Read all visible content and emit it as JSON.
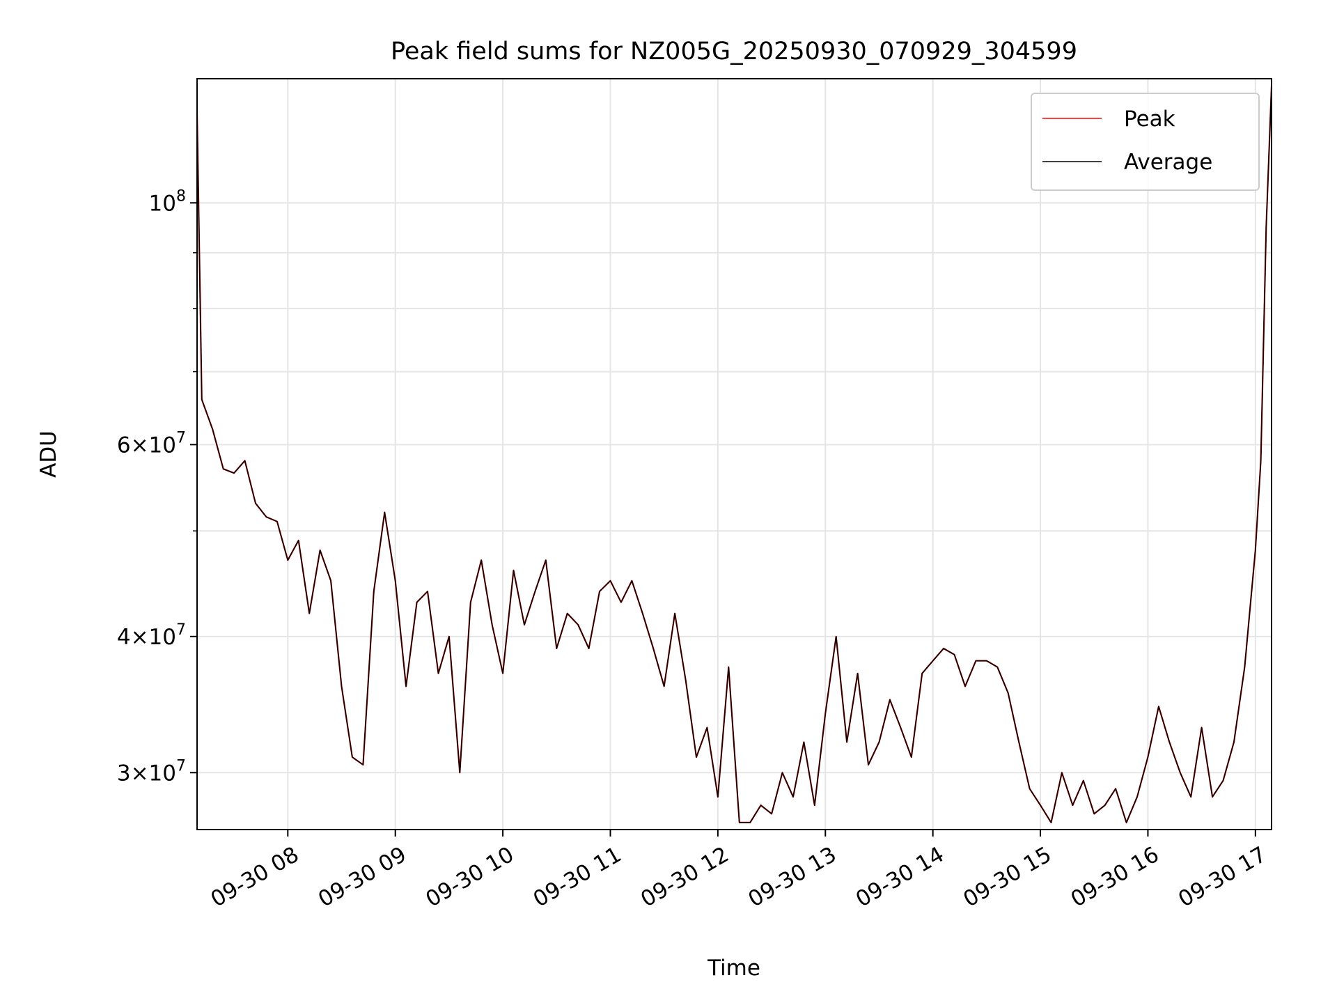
{
  "chart_data": {
    "type": "line",
    "title": "Peak field sums for NZ005G_20250930_070929_304599",
    "xlabel": "Time",
    "ylabel": "ADU",
    "yscale": "log",
    "grid": true,
    "legend_position": "top-right",
    "x_tick_labels": [
      "09-30 08",
      "09-30 09",
      "09-30 10",
      "09-30 11",
      "09-30 12",
      "09-30 13",
      "09-30 14",
      "09-30 15",
      "09-30 16",
      "09-30 17"
    ],
    "x_tick_hours": [
      8,
      9,
      10,
      11,
      12,
      13,
      14,
      15,
      16,
      17
    ],
    "xlim_hours": [
      7.156,
      17.15
    ],
    "ylim": [
      26600000,
      130000000
    ],
    "y_major_ticks": [
      {
        "value": 30000000,
        "mantissa": "3",
        "exp": "7"
      },
      {
        "value": 40000000,
        "mantissa": "4",
        "exp": "7"
      },
      {
        "value": 60000000,
        "mantissa": "6",
        "exp": "7"
      },
      {
        "value": 100000000,
        "mantissa": "",
        "exp": "8"
      }
    ],
    "y_minor_grid": [
      50000000,
      70000000,
      80000000,
      90000000
    ],
    "x_hours": [
      7.156,
      7.2,
      7.3,
      7.4,
      7.5,
      7.6,
      7.7,
      7.8,
      7.9,
      8.0,
      8.1,
      8.2,
      8.3,
      8.4,
      8.5,
      8.6,
      8.7,
      8.8,
      8.9,
      9.0,
      9.1,
      9.2,
      9.3,
      9.4,
      9.5,
      9.6,
      9.7,
      9.8,
      9.9,
      10.0,
      10.1,
      10.2,
      10.3,
      10.4,
      10.5,
      10.6,
      10.7,
      10.8,
      10.9,
      11.0,
      11.1,
      11.2,
      11.3,
      11.4,
      11.5,
      11.6,
      11.7,
      11.8,
      11.9,
      12.0,
      12.1,
      12.2,
      12.3,
      12.4,
      12.5,
      12.6,
      12.7,
      12.8,
      12.9,
      13.0,
      13.1,
      13.2,
      13.3,
      13.4,
      13.5,
      13.6,
      13.7,
      13.8,
      13.9,
      14.0,
      14.1,
      14.2,
      14.3,
      14.4,
      14.5,
      14.6,
      14.7,
      14.8,
      14.9,
      15.0,
      15.1,
      15.2,
      15.3,
      15.4,
      15.5,
      15.6,
      15.7,
      15.8,
      15.9,
      16.0,
      16.1,
      16.2,
      16.3,
      16.4,
      16.5,
      16.6,
      16.7,
      16.8,
      16.9,
      17.0,
      17.05,
      17.1,
      17.15
    ],
    "series": [
      {
        "name": "Peak",
        "color": "#ff0000",
        "values": [
          121000000,
          66000000,
          62000000,
          57000000,
          56500000,
          58000000,
          53000000,
          51500000,
          51000000,
          47000000,
          49000000,
          42000000,
          48000000,
          45000000,
          36000000,
          31000000,
          30500000,
          44000000,
          52000000,
          45000000,
          36000000,
          43000000,
          44000000,
          37000000,
          40000000,
          30000000,
          43000000,
          47000000,
          41000000,
          37000000,
          46000000,
          41000000,
          44000000,
          47000000,
          39000000,
          42000000,
          41000000,
          39000000,
          44000000,
          45000000,
          43000000,
          45000000,
          42000000,
          39000000,
          36000000,
          42000000,
          36500000,
          31000000,
          33000000,
          28500000,
          37500000,
          27000000,
          27000000,
          28000000,
          27500000,
          30000000,
          28500000,
          32000000,
          28000000,
          34000000,
          40000000,
          32000000,
          37000000,
          30500000,
          32000000,
          35000000,
          33000000,
          31000000,
          37000000,
          38000000,
          39000000,
          38500000,
          36000000,
          38000000,
          38000000,
          37500000,
          35500000,
          32000000,
          29000000,
          28000000,
          27000000,
          30000000,
          28000000,
          29500000,
          27500000,
          28000000,
          29000000,
          27000000,
          28500000,
          31000000,
          34500000,
          32000000,
          30000000,
          28500000,
          33000000,
          28500000,
          29500000,
          32000000,
          37500000,
          48000000,
          58000000,
          95000000,
          128000000
        ]
      },
      {
        "name": "Average",
        "color": "#000000",
        "values": [
          121000000,
          66000000,
          62000000,
          57000000,
          56500000,
          58000000,
          53000000,
          51500000,
          51000000,
          47000000,
          49000000,
          42000000,
          48000000,
          45000000,
          36000000,
          31000000,
          30500000,
          44000000,
          52000000,
          45000000,
          36000000,
          43000000,
          44000000,
          37000000,
          40000000,
          30000000,
          43000000,
          47000000,
          41000000,
          37000000,
          46000000,
          41000000,
          44000000,
          47000000,
          39000000,
          42000000,
          41000000,
          39000000,
          44000000,
          45000000,
          43000000,
          45000000,
          42000000,
          39000000,
          36000000,
          42000000,
          36500000,
          31000000,
          33000000,
          28500000,
          37500000,
          27000000,
          27000000,
          28000000,
          27500000,
          30000000,
          28500000,
          32000000,
          28000000,
          34000000,
          40000000,
          32000000,
          37000000,
          30500000,
          32000000,
          35000000,
          33000000,
          31000000,
          37000000,
          38000000,
          39000000,
          38500000,
          36000000,
          38000000,
          38000000,
          37500000,
          35500000,
          32000000,
          29000000,
          28000000,
          27000000,
          30000000,
          28000000,
          29500000,
          27500000,
          28000000,
          29000000,
          27000000,
          28500000,
          31000000,
          34500000,
          32000000,
          30000000,
          28500000,
          33000000,
          28500000,
          29500000,
          32000000,
          37500000,
          48000000,
          58000000,
          95000000,
          128000000
        ]
      }
    ]
  }
}
